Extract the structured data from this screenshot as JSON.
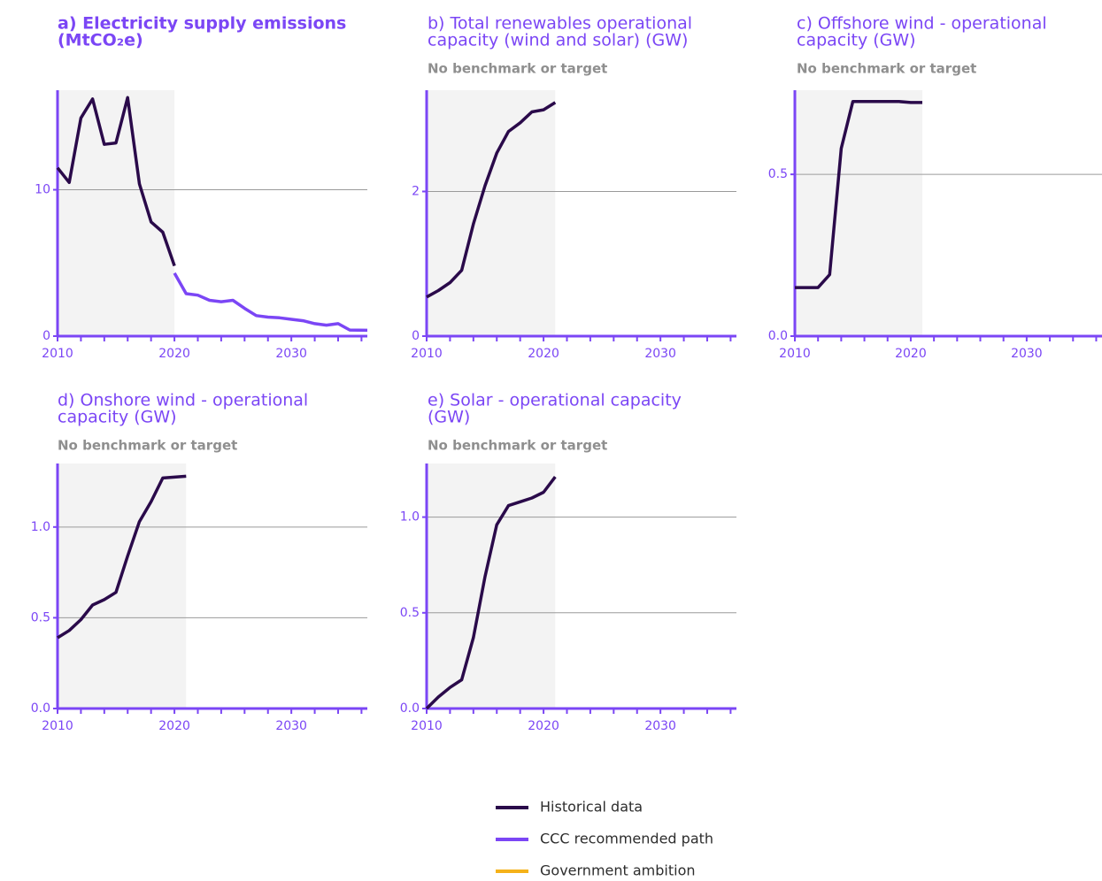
{
  "colors": {
    "historical": "#2a0a4a",
    "ccc": "#7b46f5",
    "government": "#f5b21a",
    "axis": "#7b46f5",
    "grid": "#9a9a9a",
    "shade": "#f3f3f3",
    "subtitle": "#8f8f8f"
  },
  "legend": {
    "items": [
      {
        "label": "Historical data",
        "color": "#2a0a4a"
      },
      {
        "label": "CCC recommended path",
        "color": "#7b46f5"
      },
      {
        "label": "Government ambition",
        "color": "#f5b21a"
      }
    ]
  },
  "chart_data": [
    {
      "id": "a",
      "type": "line",
      "title_lines": [
        "a) Electricity supply emissions",
        "(MtCO₂e)"
      ],
      "title_bold": true,
      "subtitle": "",
      "xlim": [
        2010,
        2036.5
      ],
      "ylim": [
        0,
        16.8
      ],
      "xticks": [
        2010,
        2020,
        2030
      ],
      "yticks": [
        0,
        10
      ],
      "shade_end": 2020,
      "series": [
        {
          "role": "historical",
          "x": [
            2010,
            2011,
            2012,
            2013,
            2014,
            2015,
            2016,
            2017,
            2018,
            2019,
            2020
          ],
          "y": [
            11.5,
            10.5,
            14.9,
            16.2,
            13.1,
            13.2,
            16.3,
            10.4,
            7.8,
            7.1,
            4.8
          ]
        },
        {
          "role": "ccc",
          "x": [
            2020,
            2021,
            2022,
            2023,
            2024,
            2025,
            2026,
            2027,
            2028,
            2029,
            2030,
            2031,
            2032,
            2033,
            2034,
            2035,
            2036.5
          ],
          "y": [
            4.3,
            2.9,
            2.8,
            2.45,
            2.35,
            2.45,
            1.9,
            1.4,
            1.3,
            1.25,
            1.15,
            1.05,
            0.85,
            0.75,
            0.85,
            0.42,
            0.4
          ]
        }
      ]
    },
    {
      "id": "b",
      "type": "line",
      "title_lines": [
        "b) Total renewables operational",
        "capacity (wind and solar) (GW)"
      ],
      "title_bold": false,
      "subtitle": "No benchmark or target",
      "xlim": [
        2010,
        2036.5
      ],
      "ylim": [
        0,
        3.4
      ],
      "xticks": [
        2010,
        2020,
        2030
      ],
      "yticks": [
        0,
        2
      ],
      "shade_end": 2021,
      "series": [
        {
          "role": "historical",
          "x": [
            2010,
            2011,
            2012,
            2013,
            2014,
            2015,
            2016,
            2017,
            2018,
            2019,
            2020,
            2021
          ],
          "y": [
            0.54,
            0.63,
            0.74,
            0.91,
            1.55,
            2.08,
            2.53,
            2.83,
            2.95,
            3.1,
            3.13,
            3.23
          ]
        }
      ]
    },
    {
      "id": "c",
      "type": "line",
      "title_lines": [
        "c) Offshore wind - operational",
        "capacity (GW)"
      ],
      "title_bold": false,
      "subtitle": "No benchmark or target",
      "xlim": [
        2010,
        2036.5
      ],
      "ylim": [
        0,
        0.76
      ],
      "xticks": [
        2010,
        2020,
        2030
      ],
      "yticks": [
        0.0,
        0.5
      ],
      "ytick_decimals": 1,
      "shade_end": 2021,
      "series": [
        {
          "role": "historical",
          "x": [
            2010,
            2011,
            2012,
            2013,
            2014,
            2015,
            2016,
            2017,
            2018,
            2019,
            2020,
            2021
          ],
          "y": [
            0.15,
            0.15,
            0.15,
            0.19,
            0.58,
            0.725,
            0.725,
            0.725,
            0.725,
            0.725,
            0.722,
            0.722
          ]
        }
      ]
    },
    {
      "id": "d",
      "type": "line",
      "title_lines": [
        "d) Onshore wind - operational",
        "capacity (GW)"
      ],
      "title_bold": false,
      "subtitle": "No benchmark or target",
      "xlim": [
        2010,
        2036.5
      ],
      "ylim": [
        0,
        1.35
      ],
      "xticks": [
        2010,
        2020,
        2030
      ],
      "yticks": [
        0.0,
        0.5,
        1.0
      ],
      "ytick_decimals": 1,
      "shade_end": 2021,
      "series": [
        {
          "role": "historical",
          "x": [
            2010,
            2011,
            2012,
            2013,
            2014,
            2015,
            2016,
            2017,
            2018,
            2019,
            2020,
            2021
          ],
          "y": [
            0.39,
            0.43,
            0.49,
            0.57,
            0.6,
            0.64,
            0.84,
            1.03,
            1.14,
            1.27,
            1.275,
            1.28
          ]
        }
      ]
    },
    {
      "id": "e",
      "type": "line",
      "title_lines": [
        "e) Solar - operational capacity",
        "(GW)"
      ],
      "title_bold": false,
      "subtitle": "No benchmark or target",
      "xlim": [
        2010,
        2036.5
      ],
      "ylim": [
        0,
        1.28
      ],
      "xticks": [
        2010,
        2020,
        2030
      ],
      "yticks": [
        0.0,
        0.5,
        1.0
      ],
      "ytick_decimals": 1,
      "shade_end": 2021,
      "series": [
        {
          "role": "historical",
          "x": [
            2010,
            2011,
            2012,
            2013,
            2014,
            2015,
            2016,
            2017,
            2018,
            2019,
            2020,
            2021
          ],
          "y": [
            0.0,
            0.06,
            0.11,
            0.15,
            0.37,
            0.69,
            0.96,
            1.06,
            1.08,
            1.1,
            1.13,
            1.21
          ]
        }
      ]
    }
  ]
}
